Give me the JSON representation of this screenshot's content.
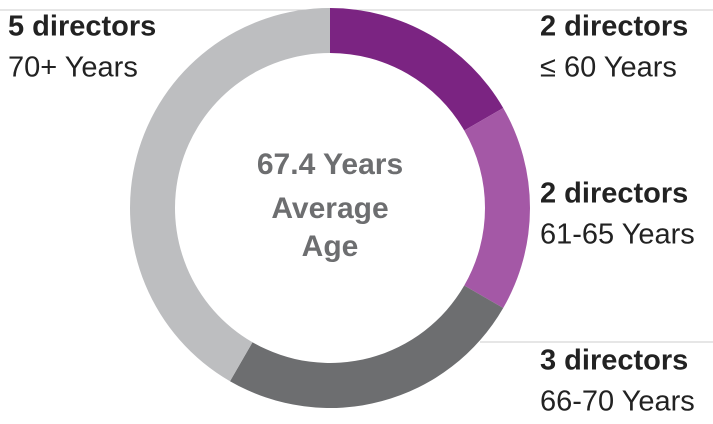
{
  "chart_data": {
    "type": "donut",
    "center_text": [
      "67.4 Years",
      "Average",
      "Age"
    ],
    "categories": [
      "≤ 60 Years",
      "61-65 Years",
      "66-70 Years",
      "70+ Years"
    ],
    "values": [
      2,
      2,
      3,
      5
    ],
    "value_labels": [
      "2 directors",
      "2 directors",
      "3 directors",
      "5 directors"
    ],
    "colors": [
      "#7b2482",
      "#a458a6",
      "#6d6e70",
      "#bdbec0"
    ]
  }
}
